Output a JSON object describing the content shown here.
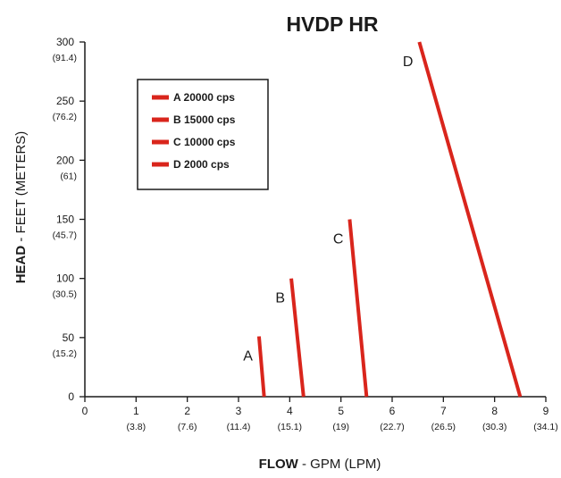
{
  "chart_data": {
    "type": "line",
    "title": "HVDP HR",
    "xlabel_bold": "FLOW",
    "xlabel_rest": " - GPM (LPM)",
    "ylabel_bold": "HEAD",
    "ylabel_rest": " - FEET (METERS)",
    "xlim": [
      0,
      9
    ],
    "ylim": [
      0,
      300
    ],
    "x_ticks": [
      {
        "value": 0,
        "label": "0",
        "sub": ""
      },
      {
        "value": 1,
        "label": "1",
        "sub": "(3.8)"
      },
      {
        "value": 2,
        "label": "2",
        "sub": "(7.6)"
      },
      {
        "value": 3,
        "label": "3",
        "sub": "(11.4)"
      },
      {
        "value": 4,
        "label": "4",
        "sub": "(15.1)"
      },
      {
        "value": 5,
        "label": "5",
        "sub": "(19)"
      },
      {
        "value": 6,
        "label": "6",
        "sub": "(22.7)"
      },
      {
        "value": 7,
        "label": "7",
        "sub": "(26.5)"
      },
      {
        "value": 8,
        "label": "8",
        "sub": "(30.3)"
      },
      {
        "value": 9,
        "label": "9",
        "sub": "(34.1)"
      }
    ],
    "y_ticks": [
      {
        "value": 0,
        "label": "0",
        "sub": ""
      },
      {
        "value": 50,
        "label": "50",
        "sub": "(15.2)"
      },
      {
        "value": 100,
        "label": "100",
        "sub": "(30.5)"
      },
      {
        "value": 150,
        "label": "150",
        "sub": "(45.7)"
      },
      {
        "value": 200,
        "label": "200",
        "sub": "(61)"
      },
      {
        "value": 250,
        "label": "250",
        "sub": "(76.2)"
      },
      {
        "value": 300,
        "label": "300",
        "sub": "(91.4)"
      }
    ],
    "series": [
      {
        "name": "A 20000 cps",
        "label": "A",
        "points": [
          [
            3.4,
            51
          ],
          [
            3.5,
            0
          ]
        ]
      },
      {
        "name": "B 15000 cps",
        "label": "B",
        "points": [
          [
            4.03,
            100
          ],
          [
            4.27,
            0
          ]
        ]
      },
      {
        "name": "C 10000 cps",
        "label": "C",
        "points": [
          [
            5.17,
            150
          ],
          [
            5.5,
            0
          ]
        ]
      },
      {
        "name": "D 2000 cps",
        "label": "D",
        "points": [
          [
            6.53,
            300
          ],
          [
            8.5,
            0
          ]
        ]
      }
    ],
    "series_color": "#d9251c",
    "legend_position": "top-left",
    "grid": false
  }
}
